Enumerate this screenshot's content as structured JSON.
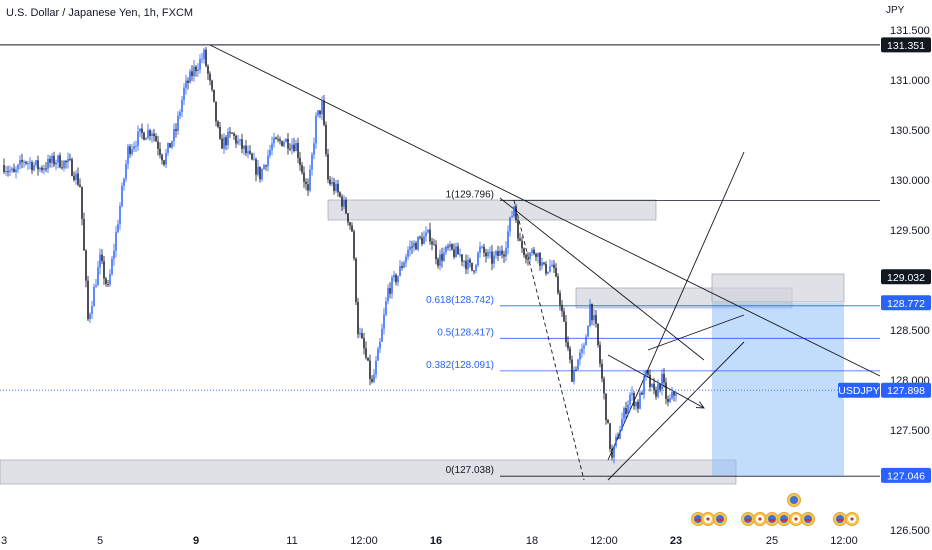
{
  "header": {
    "title": "U.S. Dollar / Japanese Yen, 1h, FXCM",
    "currency": "JPY"
  },
  "colors": {
    "candle_up": "#2962ff",
    "candle_down": "#131722",
    "fib": "#2962ff",
    "fib_zero": "#131722",
    "zone_fill": "#d1d4dc",
    "target_fill": "#90bff9",
    "trendline": "#131722",
    "badge_dark": "#131722",
    "badge_blue": "#2962ff",
    "last_price_line": "#2962ff"
  },
  "chart_data": {
    "type": "candlestick",
    "symbol": "USDJPY",
    "timeframe": "1h",
    "ylim": [
      126.5,
      131.65
    ],
    "y_ticks": [
      "131.500",
      "131.000",
      "130.500",
      "130.000",
      "129.500",
      "129.000",
      "128.500",
      "128.000",
      "127.500",
      "126.500"
    ],
    "x_ticks": [
      {
        "t": 0,
        "label": "3"
      },
      {
        "t": 48,
        "label": "5"
      },
      {
        "t": 96,
        "label": "9"
      },
      {
        "t": 144,
        "label": "11"
      },
      {
        "t": 180,
        "label": "12:00"
      },
      {
        "t": 216,
        "label": "16"
      },
      {
        "t": 264,
        "label": "18"
      },
      {
        "t": 300,
        "label": "12:00"
      },
      {
        "t": 336,
        "label": "23"
      },
      {
        "t": 384,
        "label": "25"
      },
      {
        "t": 420,
        "label": "12:00"
      }
    ],
    "x_range": [
      -2,
      438
    ],
    "price_path": [
      [
        0,
        130.15
      ],
      [
        5,
        130.05
      ],
      [
        10,
        130.2
      ],
      [
        18,
        130.12
      ],
      [
        26,
        130.2
      ],
      [
        33,
        130.15
      ],
      [
        38,
        129.95
      ],
      [
        42,
        128.6
      ],
      [
        48,
        129.2
      ],
      [
        52,
        128.9
      ],
      [
        57,
        129.6
      ],
      [
        62,
        130.3
      ],
      [
        68,
        130.45
      ],
      [
        74,
        130.5
      ],
      [
        80,
        130.2
      ],
      [
        86,
        130.5
      ],
      [
        90,
        130.9
      ],
      [
        95,
        131.1
      ],
      [
        100,
        131.25
      ],
      [
        104,
        130.85
      ],
      [
        108,
        130.35
      ],
      [
        114,
        130.45
      ],
      [
        120,
        130.3
      ],
      [
        128,
        130.05
      ],
      [
        134,
        130.35
      ],
      [
        140,
        130.4
      ],
      [
        146,
        130.35
      ],
      [
        152,
        129.85
      ],
      [
        156,
        130.6
      ],
      [
        159,
        130.75
      ],
      [
        162,
        130.0
      ],
      [
        166,
        129.9
      ],
      [
        170,
        129.75
      ],
      [
        174,
        129.5
      ],
      [
        177,
        128.5
      ],
      [
        180,
        128.3
      ],
      [
        184,
        127.95
      ],
      [
        188,
        128.35
      ],
      [
        192,
        128.9
      ],
      [
        197,
        129.05
      ],
      [
        202,
        129.3
      ],
      [
        208,
        129.4
      ],
      [
        213,
        129.45
      ],
      [
        217,
        129.2
      ],
      [
        222,
        129.3
      ],
      [
        228,
        129.25
      ],
      [
        234,
        129.1
      ],
      [
        238,
        129.3
      ],
      [
        244,
        129.2
      ],
      [
        250,
        129.3
      ],
      [
        255,
        129.75
      ],
      [
        258,
        129.35
      ],
      [
        262,
        129.25
      ],
      [
        266,
        129.3
      ],
      [
        270,
        129.1
      ],
      [
        274,
        129.15
      ],
      [
        278,
        128.8
      ],
      [
        281,
        128.4
      ],
      [
        284,
        128.05
      ],
      [
        287,
        128.2
      ],
      [
        290,
        128.3
      ],
      [
        293,
        128.75
      ],
      [
        296,
        128.5
      ],
      [
        299,
        128.0
      ],
      [
        302,
        127.5
      ],
      [
        304,
        127.2
      ],
      [
        306,
        127.38
      ],
      [
        309,
        127.6
      ],
      [
        313,
        127.85
      ],
      [
        317,
        127.75
      ],
      [
        321,
        128.05
      ],
      [
        325,
        127.85
      ],
      [
        329,
        128.0
      ],
      [
        332,
        127.75
      ],
      [
        336,
        127.9
      ]
    ],
    "ohlc_note": "hourly candles approximated from the visible price path",
    "last_price": {
      "label": "USDJPY",
      "value": 127.898
    },
    "price_badges": [
      {
        "value": 131.351,
        "label": "131.351",
        "style": "dark"
      },
      {
        "value": 129.032,
        "label": "129.032",
        "style": "dark"
      },
      {
        "value": 128.772,
        "label": "128.772",
        "style": "blue"
      },
      {
        "value": 127.898,
        "label": "127.898",
        "style": "blue"
      },
      {
        "value": 127.046,
        "label": "127.046",
        "style": "blue"
      }
    ],
    "fib_levels": [
      {
        "ratio": "1",
        "price": 129.796,
        "label": "1(129.796)"
      },
      {
        "ratio": "0.618",
        "price": 128.742,
        "label": "0.618(128.742)"
      },
      {
        "ratio": "0.5",
        "price": 128.417,
        "label": "0.5(128.417)"
      },
      {
        "ratio": "0.382",
        "price": 128.091,
        "label": "0.382(128.091)"
      },
      {
        "ratio": "0",
        "price": 127.038,
        "label": "0(127.038)"
      }
    ],
    "horizontal_lines": [
      131.351
    ],
    "zones": [
      {
        "t0": 162,
        "t1": 326,
        "p0": 129.6,
        "p1": 129.8
      },
      {
        "t0": 286,
        "t1": 394,
        "p0": 128.72,
        "p1": 128.92
      },
      {
        "t0": -2,
        "t1": 366,
        "p0": 126.96,
        "p1": 127.2
      },
      {
        "t0": 354,
        "t1": 420,
        "p0": 128.78,
        "p1": 129.06
      }
    ],
    "target_box": {
      "t0": 354,
      "t1": 420,
      "p_top": 128.77,
      "p_bottom": 127.046
    },
    "trendlines": [
      {
        "t0": 103,
        "p0": 131.35,
        "t1": 438,
        "p1": 128.04
      },
      {
        "t0": 248,
        "p0": 129.82,
        "t1": 350,
        "p1": 128.2
      },
      {
        "t0": 302,
        "p0": 127.2,
        "t1": 370,
        "p1": 130.28
      },
      {
        "t0": 302,
        "p0": 127.0,
        "t1": 370,
        "p1": 128.38
      },
      {
        "t0": 322,
        "p0": 128.3,
        "t1": 370,
        "p1": 128.65
      }
    ],
    "dashed_lines": [
      {
        "t0": 255,
        "p0": 129.796,
        "t1": 290,
        "p1": 127.0
      }
    ],
    "projection_arrow": {
      "t0": 302,
      "p0": 128.25,
      "t1": 350,
      "p1": 127.72
    },
    "event_icons_count": 11
  }
}
